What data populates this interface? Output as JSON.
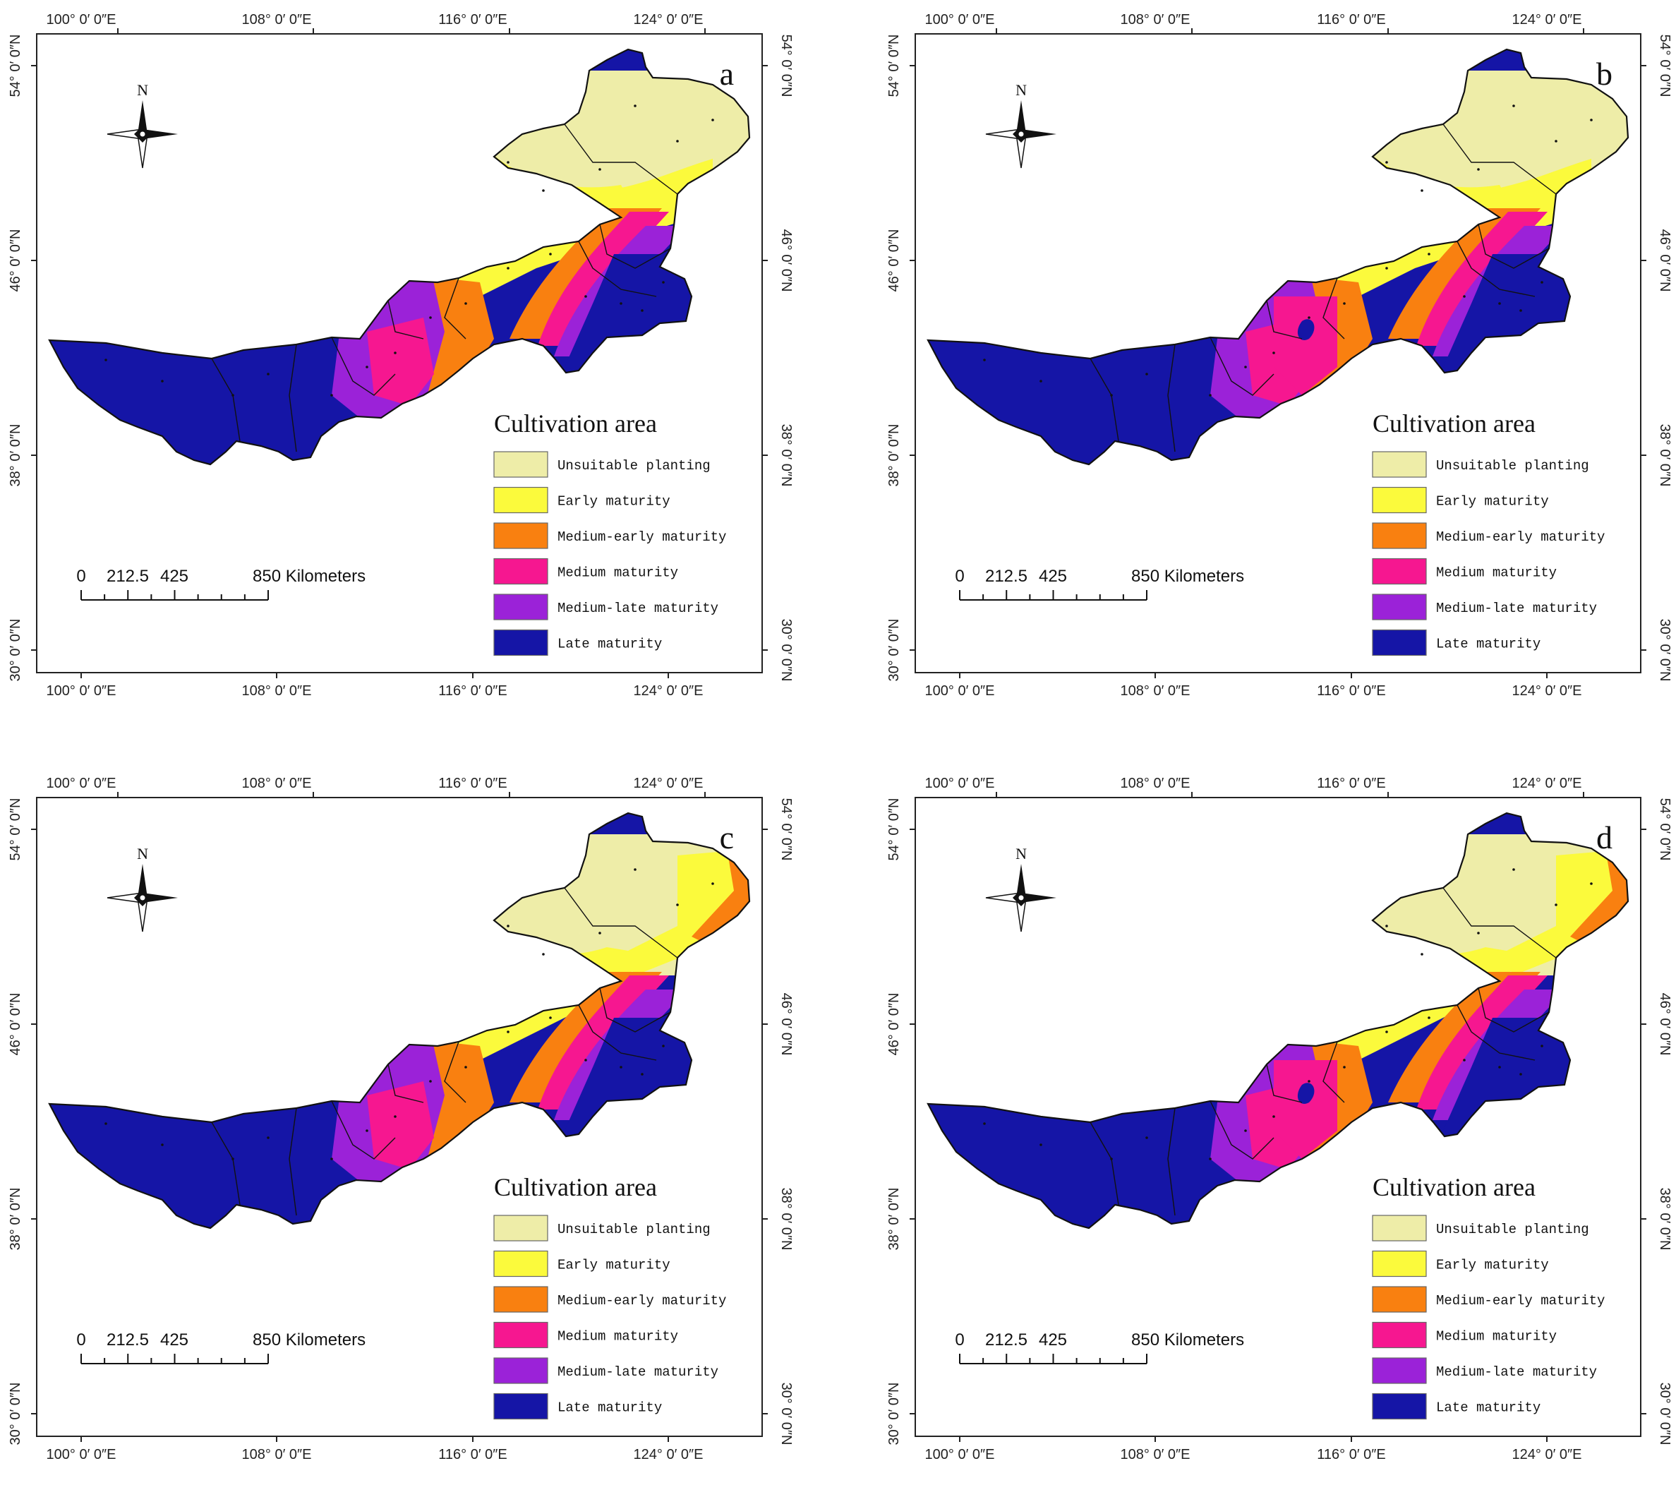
{
  "colors": {
    "unsuitable": "#EEEDA8",
    "early": "#FBFA3C",
    "medium_early": "#F98010",
    "medium": "#F61790",
    "medium_late": "#9B22D8",
    "late": "#1515A6",
    "border": "#111111"
  },
  "compass": {
    "label": "N",
    "icon": "north-arrow-compass-icon"
  },
  "axes": {
    "top_ticks": [
      "100° 0′ 0″E",
      "108° 0′ 0″E",
      "116° 0′ 0″E",
      "124° 0′ 0″E"
    ],
    "bottom_ticks": [
      "100° 0′ 0″E",
      "108° 0′ 0″E",
      "116° 0′ 0″E",
      "124° 0′ 0″E"
    ],
    "lat_ticks": [
      "54° 0′ 0″N",
      "46° 0′ 0″N",
      "38° 0′ 0″N",
      "30° 0′ 0″N"
    ]
  },
  "scale_bar": {
    "labels": [
      "0",
      "212.5",
      "425",
      "850 Kilometers"
    ],
    "values_km": [
      0,
      212.5,
      425,
      850
    ]
  },
  "legend": {
    "title": "Cultivation area",
    "items": [
      {
        "key": "unsuitable",
        "label": "Unsuitable planting"
      },
      {
        "key": "early",
        "label": "Early maturity"
      },
      {
        "key": "medium_early",
        "label": "Medium-early maturity"
      },
      {
        "key": "medium",
        "label": "Medium maturity"
      },
      {
        "key": "medium_late",
        "label": "Medium-late maturity"
      },
      {
        "key": "late",
        "label": "Late maturity"
      }
    ]
  },
  "panels": [
    {
      "letter": "a"
    },
    {
      "letter": "b"
    },
    {
      "letter": "c"
    },
    {
      "letter": "d"
    }
  ]
}
